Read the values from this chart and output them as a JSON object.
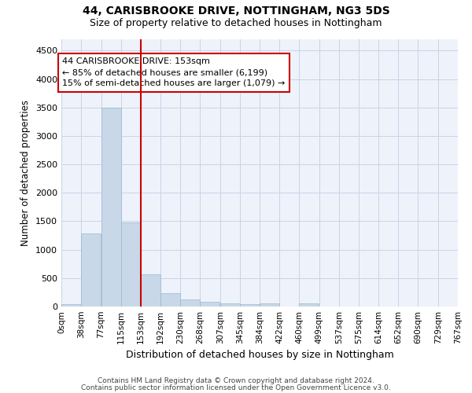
{
  "title_line1": "44, CARISBROOKE DRIVE, NOTTINGHAM, NG3 5DS",
  "title_line2": "Size of property relative to detached houses in Nottingham",
  "xlabel": "Distribution of detached houses by size in Nottingham",
  "ylabel": "Number of detached properties",
  "footer_line1": "Contains HM Land Registry data © Crown copyright and database right 2024.",
  "footer_line2": "Contains public sector information licensed under the Open Government Licence v3.0.",
  "annotation_line1": "44 CARISBROOKE DRIVE: 153sqm",
  "annotation_line2": "← 85% of detached houses are smaller (6,199)",
  "annotation_line3": "15% of semi-detached houses are larger (1,079) →",
  "property_size": 153,
  "bar_color": "#c8d8e8",
  "bar_edge_color": "#9ab8cc",
  "vline_color": "#cc0000",
  "annotation_box_color": "#cc0000",
  "grid_color": "#c8d4e8",
  "background_color": "#eef2fa",
  "bin_edges": [
    0,
    38,
    77,
    115,
    153,
    192,
    230,
    268,
    307,
    345,
    384,
    422,
    460,
    499,
    537,
    575,
    614,
    652,
    690,
    729,
    767
  ],
  "bin_labels": [
    "0sqm",
    "38sqm",
    "77sqm",
    "115sqm",
    "153sqm",
    "192sqm",
    "230sqm",
    "268sqm",
    "307sqm",
    "345sqm",
    "384sqm",
    "422sqm",
    "460sqm",
    "499sqm",
    "537sqm",
    "575sqm",
    "614sqm",
    "652sqm",
    "690sqm",
    "729sqm",
    "767sqm"
  ],
  "bar_heights": [
    40,
    1280,
    3500,
    1480,
    570,
    240,
    120,
    80,
    55,
    40,
    50,
    0,
    55,
    0,
    0,
    0,
    0,
    0,
    0,
    0
  ],
  "ylim": [
    0,
    4700
  ],
  "yticks": [
    0,
    500,
    1000,
    1500,
    2000,
    2500,
    3000,
    3500,
    4000,
    4500
  ]
}
